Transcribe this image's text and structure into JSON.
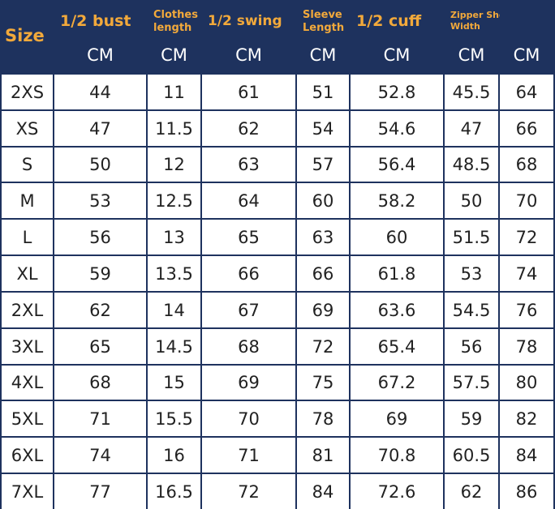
{
  "size_chart": {
    "corner_label": "Size",
    "columns": [
      {
        "label": "1/2 bust",
        "unit": "CM",
        "size": "big"
      },
      {
        "label": "Clothes length",
        "unit": "CM",
        "size": "small"
      },
      {
        "label": "1/2 swing",
        "unit": "CM",
        "size": "mid"
      },
      {
        "label": "Sleeve Length",
        "unit": "CM",
        "size": "small"
      },
      {
        "label": "1/2 cuff",
        "unit": "CM",
        "size": "big"
      },
      {
        "label": "Zipper Shoulder Width",
        "unit": "CM",
        "size": "tiny"
      },
      {
        "label": "",
        "unit": "CM",
        "size": "small"
      }
    ],
    "rows": [
      {
        "size": "2XS",
        "values": [
          "44",
          "11",
          "61",
          "51",
          "52.8",
          "45.5",
          "64"
        ]
      },
      {
        "size": "XS",
        "values": [
          "47",
          "11.5",
          "62",
          "54",
          "54.6",
          "47",
          "66"
        ]
      },
      {
        "size": "S",
        "values": [
          "50",
          "12",
          "63",
          "57",
          "56.4",
          "48.5",
          "68"
        ]
      },
      {
        "size": "M",
        "values": [
          "53",
          "12.5",
          "64",
          "60",
          "58.2",
          "50",
          "70"
        ]
      },
      {
        "size": "L",
        "values": [
          "56",
          "13",
          "65",
          "63",
          "60",
          "51.5",
          "72"
        ]
      },
      {
        "size": "XL",
        "values": [
          "59",
          "13.5",
          "66",
          "66",
          "61.8",
          "53",
          "74"
        ]
      },
      {
        "size": "2XL",
        "values": [
          "62",
          "14",
          "67",
          "69",
          "63.6",
          "54.5",
          "76"
        ]
      },
      {
        "size": "3XL",
        "values": [
          "65",
          "14.5",
          "68",
          "72",
          "65.4",
          "56",
          "78"
        ]
      },
      {
        "size": "4XL",
        "values": [
          "68",
          "15",
          "69",
          "75",
          "67.2",
          "57.5",
          "80"
        ]
      },
      {
        "size": "5XL",
        "values": [
          "71",
          "15.5",
          "70",
          "78",
          "69",
          "59",
          "82"
        ]
      },
      {
        "size": "6XL",
        "values": [
          "74",
          "16",
          "71",
          "81",
          "70.8",
          "60.5",
          "84"
        ]
      },
      {
        "size": "7XL",
        "values": [
          "77",
          "16.5",
          "72",
          "84",
          "72.6",
          "62",
          "86"
        ]
      }
    ]
  },
  "colors": {
    "header_bg": "#1e325e",
    "header_label": "#f2a93b",
    "header_unit": "#ffffff",
    "cell_bg": "#ffffff",
    "cell_text": "#222222",
    "grid": "#1e325e"
  }
}
